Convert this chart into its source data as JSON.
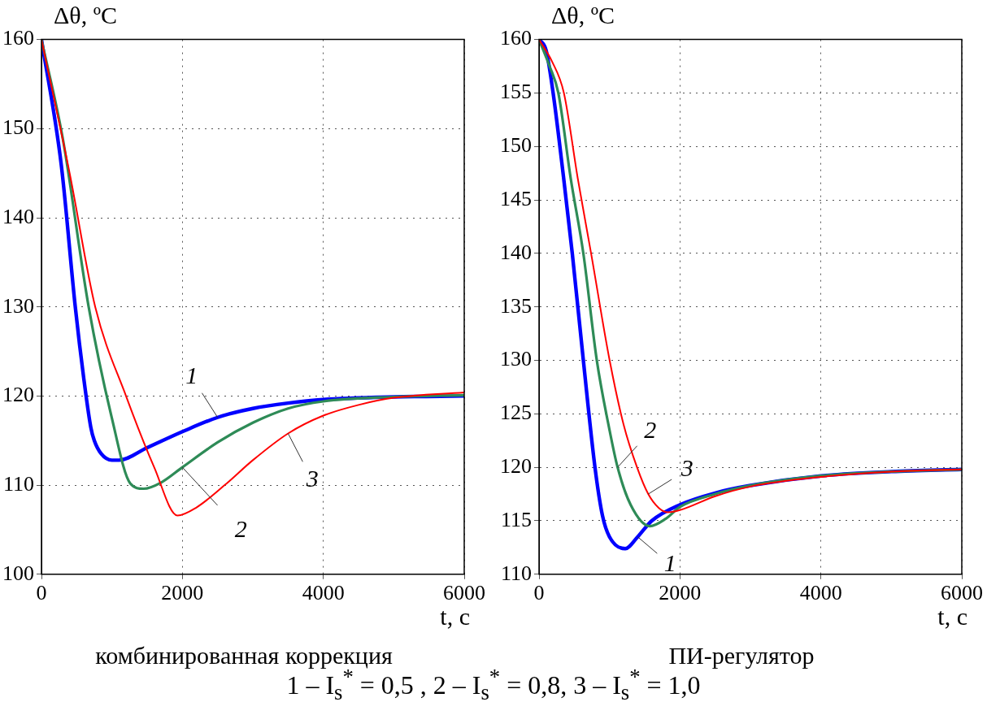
{
  "chart_data": [
    {
      "type": "line",
      "title": "комбинированная коррекция",
      "xlabel": "t, c",
      "ylabel": "Δθ, ºC",
      "xlim": [
        0,
        6000
      ],
      "xticks": [
        0,
        2000,
        4000,
        6000
      ],
      "ylim": [
        100,
        160
      ],
      "yticks": [
        100,
        110,
        120,
        130,
        140,
        150,
        160
      ],
      "grid": true,
      "legend": false,
      "line_style": "solid",
      "marker": "none",
      "series": [
        {
          "color": "#0000ff",
          "x": [
            0,
            280,
            480,
            600,
            700,
            750,
            850,
            1000,
            1100,
            1500,
            2000,
            2500,
            3000,
            3500,
            4000,
            5000,
            6000
          ],
          "values": [
            160,
            146,
            130,
            122,
            116.5,
            115,
            113.5,
            112.8,
            112.8,
            114.2,
            116,
            117.6,
            118.6,
            119.2,
            119.6,
            119.9,
            120
          ]
        },
        {
          "color": "#2e8b57",
          "x": [
            0,
            300,
            670,
            1000,
            1260,
            1450,
            1700,
            2000,
            2500,
            3000,
            3500,
            4000,
            5000,
            6000
          ],
          "values": [
            160,
            149,
            130,
            117.5,
            110.2,
            109.6,
            110.3,
            112,
            114.8,
            117,
            118.6,
            119.4,
            119.9,
            120.1
          ]
        },
        {
          "color": "#ff0000",
          "x": [
            0,
            400,
            763,
            1200,
            1600,
            1930,
            2200,
            2600,
            3000,
            3500,
            4000,
            4500,
            5000,
            6000
          ],
          "values": [
            160,
            145,
            130,
            120,
            112,
            106.6,
            107.5,
            110,
            112.8,
            115.8,
            117.8,
            119,
            119.8,
            120.4
          ]
        }
      ],
      "annotations": [
        {
          "text": "1",
          "x": 2500,
          "y": 117.6
        },
        {
          "text": "2",
          "x": 2000,
          "y": 112
        },
        {
          "text": "3",
          "x": 3500,
          "y": 115.8
        },
        "1 – I$_{s}$$^{*}$ = 0,5 , 2 – I$_{s}$$^{*}$ = 0,8, 3 – I$_{s}$$^{*}$ = 1,0"
      ]
    },
    {
      "type": "line",
      "title": "ПИ-регулятор",
      "xlabel": "t, c",
      "ylabel": "Δθ, ºC",
      "xlim": [
        0,
        6000
      ],
      "xticks": [
        0,
        2000,
        4000,
        6000
      ],
      "ylim": [
        110,
        160
      ],
      "yticks": [
        110,
        115,
        120,
        125,
        130,
        135,
        140,
        145,
        150,
        155,
        160
      ],
      "grid": true,
      "legend": false,
      "line_style": "solid",
      "marker": "none",
      "series": [
        {
          "color": "#0000ff",
          "x": [
            0,
            100,
            200,
            350,
            472,
            629,
            794,
            900,
            1000,
            1224,
            1400,
            1600,
            2000,
            2500,
            3000,
            4000,
            5000,
            6000
          ],
          "values": [
            160,
            159,
            155,
            147,
            140,
            130,
            120,
            115.5,
            113.5,
            112.4,
            113.5,
            115,
            116.5,
            117.6,
            118.3,
            119.2,
            119.6,
            119.8
          ]
        },
        {
          "color": "#2e8b57",
          "x": [
            0,
            150,
            274,
            450,
            629,
            820,
            1000,
            1115,
            1300,
            1572,
            1800,
            2000,
            2500,
            3000,
            4000,
            5000,
            6000
          ],
          "values": [
            160,
            157.5,
            155,
            147,
            140,
            130,
            123.5,
            120,
            116.5,
            114.5,
            115.2,
            116.3,
            117.5,
            118.3,
            119.2,
            119.6,
            119.8
          ]
        },
        {
          "color": "#ff0000",
          "x": [
            0,
            180,
            353,
            550,
            739,
            1002,
            1200,
            1391,
            1550,
            1700,
            1831,
            2000,
            2500,
            3000,
            4000,
            5000,
            6000
          ],
          "values": [
            160,
            158,
            155,
            147,
            140,
            130,
            124,
            120,
            117.5,
            116.2,
            115.8,
            116,
            117.3,
            118.2,
            119.1,
            119.6,
            119.8
          ]
        }
      ],
      "annotations": [
        {
          "text": "2",
          "x": 1115,
          "y": 120
        },
        {
          "text": "3",
          "x": 1550,
          "y": 117.5
        },
        {
          "text": "1",
          "x": 1400,
          "y": 113.5
        }
      ]
    }
  ]
}
